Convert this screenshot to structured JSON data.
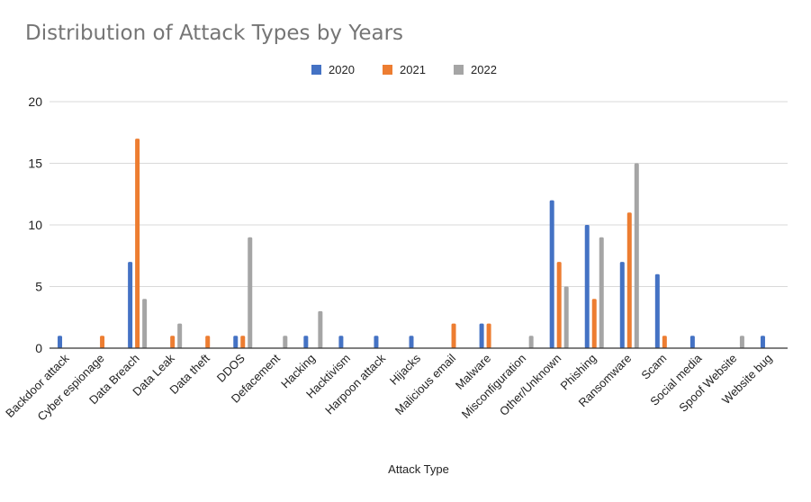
{
  "chart_data": {
    "type": "bar",
    "title": "Distribution of Attack Types by Years",
    "xlabel": "Attack Type",
    "ylabel": "",
    "ylim": [
      0,
      20
    ],
    "yticks": [
      0,
      5,
      10,
      15,
      20
    ],
    "grid": true,
    "legend_position": "top",
    "categories": [
      "Backdoor attack",
      "Cyber espionage",
      "Data Breach",
      "Data Leak",
      "Data theft",
      "DDOS",
      "Defacement",
      "Hacking",
      "Hacktivism",
      "Harpoon attack",
      "Hijacks",
      "Malicious email",
      "Malware",
      "Misconfiguration",
      "Other/Unknown",
      "Phishing",
      "Ransomware",
      "Scam",
      "Social media",
      "Spoof Website",
      "Website bug"
    ],
    "series": [
      {
        "name": "2020",
        "color": "#4472c4",
        "values": [
          1,
          0,
          7,
          0,
          0,
          1,
          0,
          1,
          1,
          1,
          1,
          0,
          2,
          0,
          12,
          10,
          7,
          6,
          1,
          0,
          1
        ]
      },
      {
        "name": "2021",
        "color": "#ed7d31",
        "values": [
          0,
          1,
          17,
          1,
          1,
          1,
          0,
          0,
          0,
          0,
          0,
          2,
          2,
          0,
          7,
          4,
          11,
          1,
          0,
          0,
          0
        ]
      },
      {
        "name": "2022",
        "color": "#a5a5a5",
        "values": [
          0,
          0,
          4,
          2,
          0,
          9,
          1,
          3,
          0,
          0,
          0,
          0,
          0,
          1,
          5,
          9,
          15,
          0,
          0,
          1,
          0
        ]
      }
    ]
  }
}
